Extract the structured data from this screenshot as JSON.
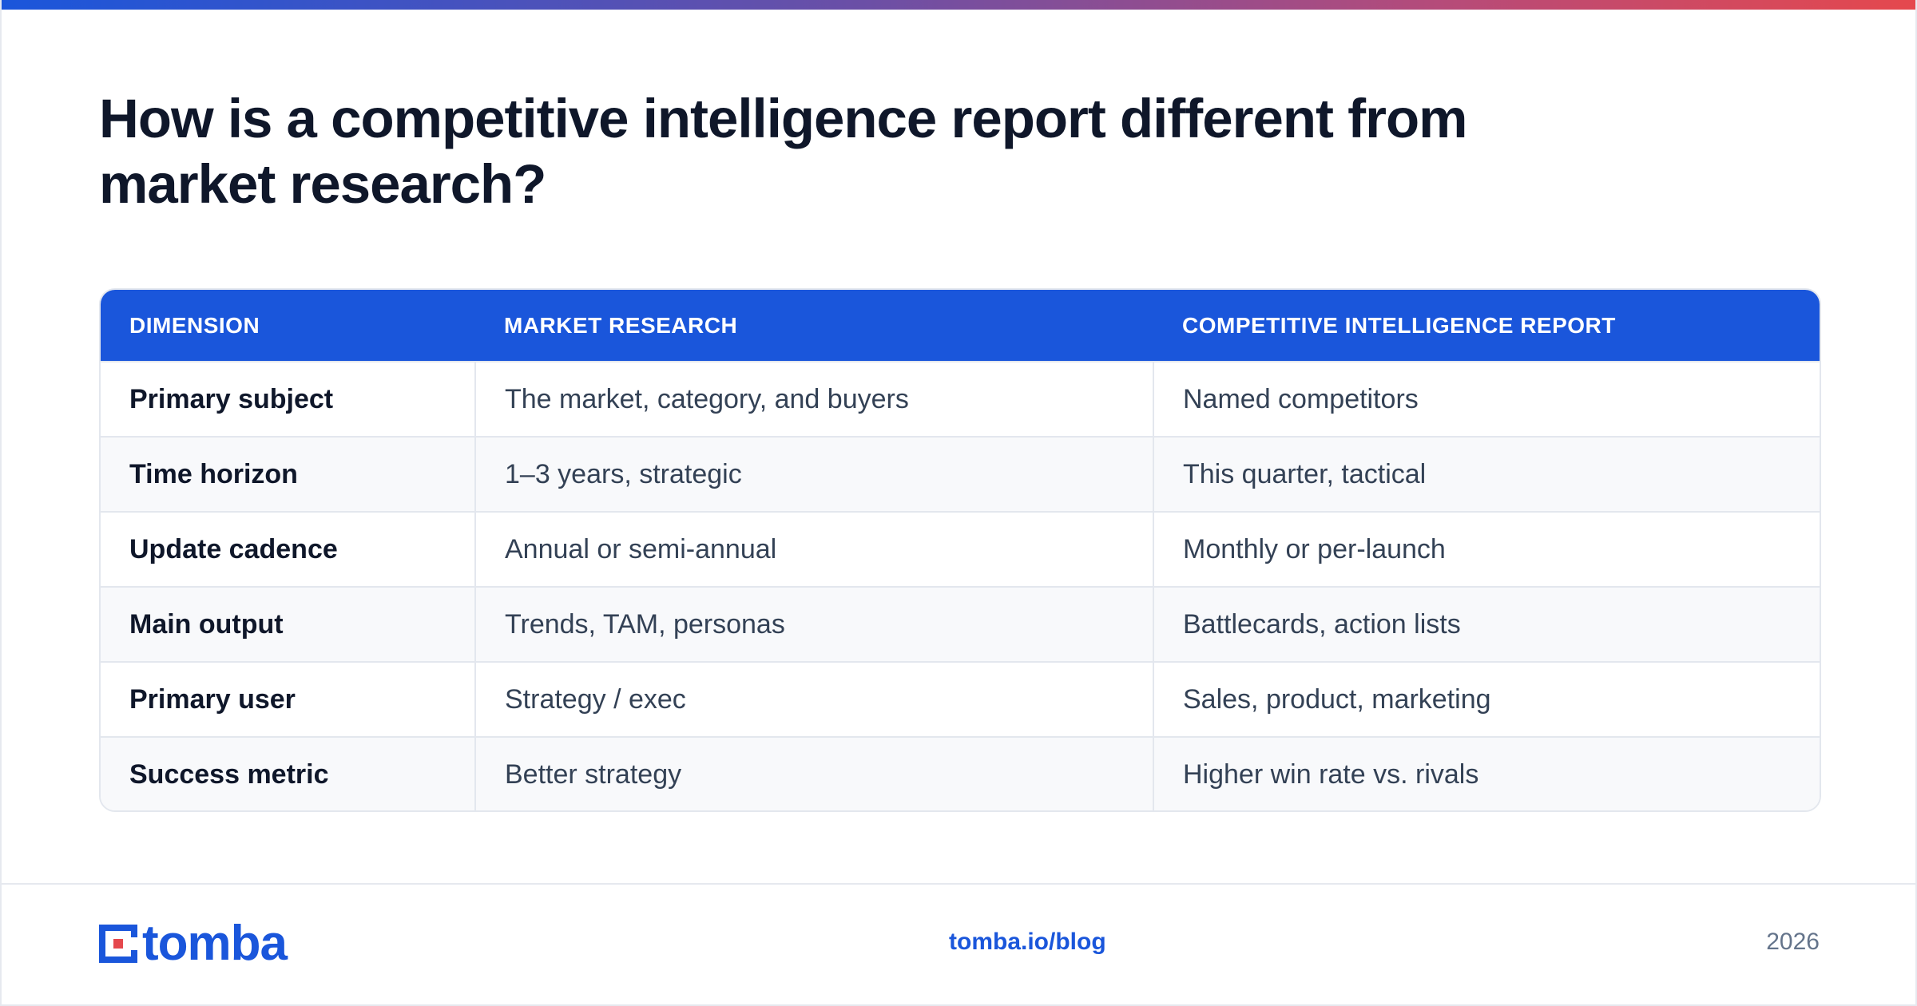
{
  "title": "How is a competitive intelligence report different from market research?",
  "table": {
    "headers": [
      "DIMENSION",
      "MARKET RESEARCH",
      "COMPETITIVE INTELLIGENCE REPORT"
    ],
    "rows": [
      [
        "Primary subject",
        "The market, category, and buyers",
        "Named competitors"
      ],
      [
        "Time horizon",
        "1–3 years, strategic",
        "This quarter, tactical"
      ],
      [
        "Update cadence",
        "Annual or semi-annual",
        "Monthly or per-launch"
      ],
      [
        "Main output",
        "Trends, TAM, personas",
        "Battlecards, action lists"
      ],
      [
        "Primary user",
        "Strategy / exec",
        "Sales, product, marketing"
      ],
      [
        "Success metric",
        "Better strategy",
        "Higher win rate vs. rivals"
      ]
    ]
  },
  "footer": {
    "logo_text": "tomba",
    "logo_icon": "tomba-logo-icon",
    "link": "tomba.io/blog",
    "year": "2026"
  },
  "colors": {
    "accent": "#1a56db",
    "accent_red": "#e5484d",
    "title": "#0f172a",
    "body_text": "#334155",
    "muted": "#64748b"
  }
}
